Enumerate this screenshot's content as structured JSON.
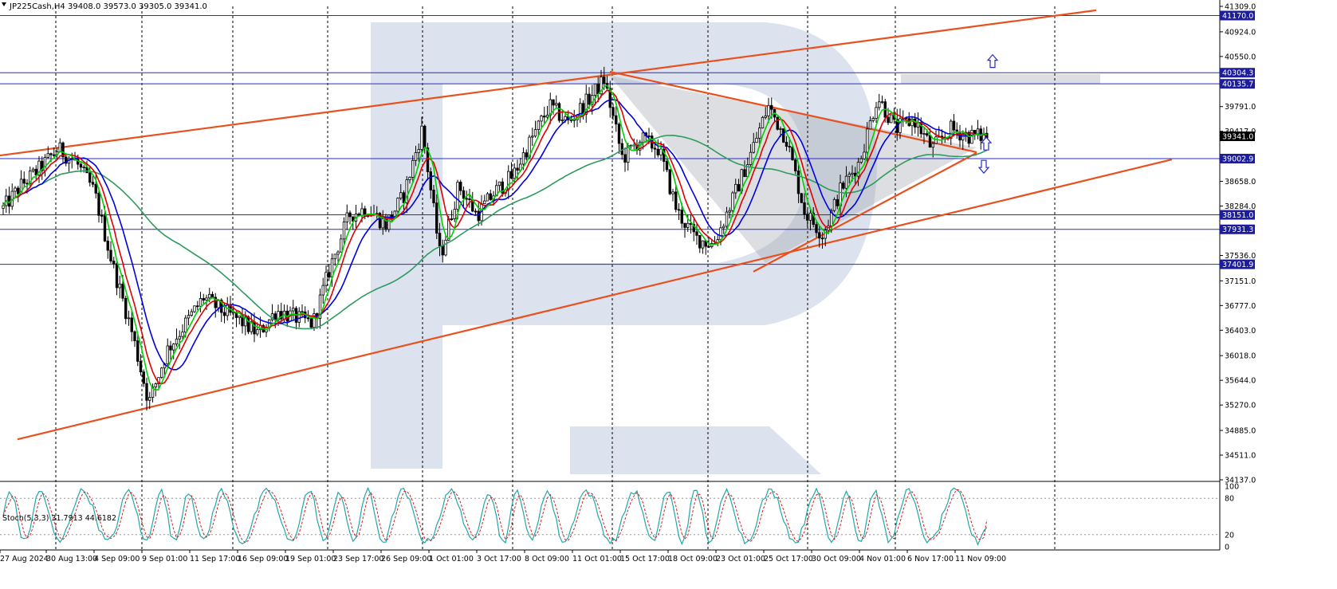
{
  "header": {
    "symbol_line": "JP225Cash,H4  39408.0 39573.0 39305.0 39341.0"
  },
  "stoch_header": "Stoch(5,3,3) 31.7913 44.6182",
  "colors": {
    "candle": "#000000",
    "ma_green": "#00d000",
    "ma_red": "#e00000",
    "ma_blue": "#0000e0",
    "ma_sea": "#2e9a5e",
    "level_line": "#2a2acc",
    "trend_line": "#e8501e",
    "price_tag_bg": "#1c1c9c",
    "stoch_main": "#22a8a8",
    "stoch_signal": "#d02020",
    "watermark": "#dde3ee"
  },
  "chart_data": {
    "type": "candlestick",
    "title": "JP225Cash,H4",
    "ohlc_last": {
      "open": 39408.0,
      "high": 39573.0,
      "low": 39305.0,
      "close": 39341.0
    },
    "ylim": [
      34137.0,
      41309.0
    ],
    "price_axis_ticks": [
      "41309.0",
      "40924.0",
      "40550.0",
      "39791.0",
      "39417.0",
      "38658.0",
      "38284.0",
      "37536.0",
      "37151.0",
      "36777.0",
      "36403.0",
      "36018.0",
      "35644.0",
      "35270.0",
      "34885.0",
      "34511.0",
      "34137.0"
    ],
    "time_axis_labels": [
      "27 Aug 2024",
      "30 Aug 13:00",
      "4 Sep 09:00",
      "9 Sep 01:00",
      "11 Sep 17:00",
      "16 Sep 09:00",
      "19 Sep 01:00",
      "23 Sep 17:00",
      "26 Sep 09:00",
      "1 Oct 01:00",
      "3 Oct 17:00",
      "8 Oct 09:00",
      "11 Oct 01:00",
      "15 Oct 17:00",
      "18 Oct 09:00",
      "23 Oct 01:00",
      "25 Oct 17:00",
      "30 Oct 09:00",
      "4 Nov 01:00",
      "6 Nov 17:00",
      "11 Nov 09:00"
    ],
    "levels": [
      {
        "price": 41170.0,
        "label": "41170.0"
      },
      {
        "price": 40304.3,
        "label": "40304.3"
      },
      {
        "price": 40135.7,
        "label": "40135.7"
      },
      {
        "price": 39341.0,
        "label": "39341.0",
        "current": true
      },
      {
        "price": 39002.9,
        "label": "39002.9"
      },
      {
        "price": 38151.0,
        "label": "38151.0"
      },
      {
        "price": 37931.3,
        "label": "37931.3"
      },
      {
        "price": 37401.9,
        "label": "37401.9"
      }
    ],
    "close_series": [
      38250,
      38600,
      38850,
      39150,
      38950,
      38500,
      37400,
      36450,
      35300,
      36100,
      36500,
      36900,
      36700,
      36550,
      36350,
      36700,
      36600,
      36500,
      37400,
      38150,
      38250,
      38000,
      38450,
      39450,
      37500,
      38600,
      38150,
      38500,
      38750,
      39300,
      39800,
      39550,
      39850,
      40200,
      39000,
      39300,
      39150,
      38200,
      37800,
      37700,
      38350,
      39050,
      39800,
      39300,
      38200,
      37850,
      38550,
      38950,
      39950,
      39450,
      39600,
      39150,
      39450,
      39350,
      39341
    ],
    "stoch": {
      "name": "Stoch(5,3,3)",
      "main": 31.7913,
      "signal": 44.6182,
      "ylim": [
        0,
        100
      ],
      "ticks": [
        "100",
        "80",
        "20",
        "0"
      ]
    },
    "signals": [
      {
        "direction": "up",
        "price": 40480
      },
      {
        "direction": "up",
        "price": 39230
      },
      {
        "direction": "down",
        "price": 38880
      }
    ]
  }
}
